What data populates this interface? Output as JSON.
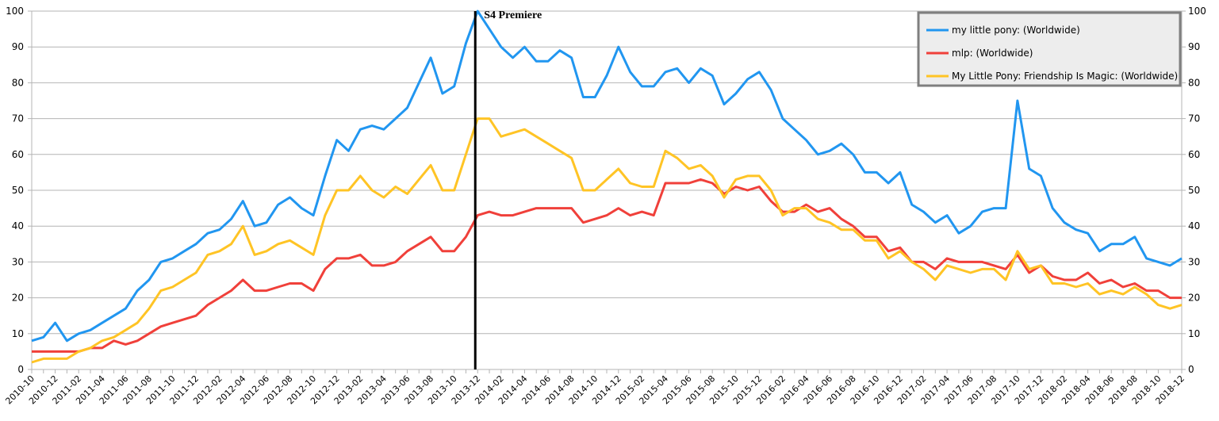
{
  "chart_data": {
    "type": "line",
    "title": "",
    "xlabel": "",
    "ylabel": "",
    "ylim": [
      0,
      100
    ],
    "yticks": [
      0,
      10,
      20,
      30,
      40,
      50,
      60,
      70,
      80,
      90,
      100
    ],
    "grid": true,
    "legend_position": "top-right",
    "x": [
      "2010-10",
      "2010-11",
      "2010-12",
      "2011-01",
      "2011-02",
      "2011-03",
      "2011-04",
      "2011-05",
      "2011-06",
      "2011-07",
      "2011-08",
      "2011-09",
      "2011-10",
      "2011-11",
      "2011-12",
      "2012-01",
      "2012-02",
      "2012-03",
      "2012-04",
      "2012-05",
      "2012-06",
      "2012-07",
      "2012-08",
      "2012-09",
      "2012-10",
      "2012-11",
      "2012-12",
      "2013-01",
      "2013-02",
      "2013-03",
      "2013-04",
      "2013-05",
      "2013-06",
      "2013-07",
      "2013-08",
      "2013-09",
      "2013-10",
      "2013-11",
      "2013-12",
      "2014-01",
      "2014-02",
      "2014-03",
      "2014-04",
      "2014-05",
      "2014-06",
      "2014-07",
      "2014-08",
      "2014-09",
      "2014-10",
      "2014-11",
      "2014-12",
      "2015-01",
      "2015-02",
      "2015-03",
      "2015-04",
      "2015-05",
      "2015-06",
      "2015-07",
      "2015-08",
      "2015-09",
      "2015-10",
      "2015-11",
      "2015-12",
      "2016-01",
      "2016-02",
      "2016-03",
      "2016-04",
      "2016-05",
      "2016-06",
      "2016-07",
      "2016-08",
      "2016-09",
      "2016-10",
      "2016-11",
      "2016-12",
      "2017-01",
      "2017-02",
      "2017-03",
      "2017-04",
      "2017-05",
      "2017-06",
      "2017-07",
      "2017-08",
      "2017-09",
      "2017-10",
      "2017-11",
      "2017-12",
      "2018-01",
      "2018-02",
      "2018-03",
      "2018-04",
      "2018-05",
      "2018-06",
      "2018-07",
      "2018-08",
      "2018-09",
      "2018-10",
      "2018-11",
      "2018-12"
    ],
    "series": [
      {
        "name": "my little pony: (Worldwide)",
        "color": "#2196f0",
        "values": [
          8,
          9,
          13,
          8,
          10,
          11,
          13,
          15,
          17,
          22,
          25,
          30,
          31,
          33,
          35,
          38,
          39,
          42,
          47,
          40,
          41,
          46,
          48,
          45,
          43,
          54,
          64,
          61,
          67,
          68,
          67,
          70,
          73,
          80,
          87,
          77,
          79,
          91,
          100,
          95,
          90,
          87,
          90,
          86,
          86,
          89,
          87,
          76,
          76,
          82,
          90,
          83,
          79,
          79,
          83,
          84,
          80,
          84,
          82,
          74,
          77,
          81,
          83,
          78,
          70,
          67,
          64,
          60,
          61,
          63,
          60,
          55,
          55,
          52,
          55,
          46,
          44,
          41,
          43,
          38,
          40,
          44,
          45,
          45,
          75,
          56,
          54,
          45,
          41,
          39,
          38,
          33,
          35,
          35,
          37,
          31,
          30,
          29,
          31
        ]
      },
      {
        "name": "mlp: (Worldwide)",
        "color": "#f0403a",
        "values": [
          5,
          5,
          5,
          5,
          5,
          6,
          6,
          8,
          7,
          8,
          10,
          12,
          13,
          14,
          15,
          18,
          20,
          22,
          25,
          22,
          22,
          23,
          24,
          24,
          22,
          28,
          31,
          31,
          32,
          29,
          29,
          30,
          33,
          35,
          37,
          33,
          33,
          37,
          43,
          44,
          43,
          43,
          44,
          45,
          45,
          45,
          45,
          41,
          42,
          43,
          45,
          43,
          44,
          43,
          52,
          52,
          52,
          53,
          52,
          49,
          51,
          50,
          51,
          47,
          44,
          44,
          46,
          44,
          45,
          42,
          40,
          37,
          37,
          33,
          34,
          30,
          30,
          28,
          31,
          30,
          30,
          30,
          29,
          28,
          32,
          27,
          29,
          26,
          25,
          25,
          27,
          24,
          25,
          23,
          24,
          22,
          22,
          20,
          20
        ]
      },
      {
        "name": "My Little Pony: Friendship Is Magic: (Worldwide)",
        "color": "#ffc425",
        "values": [
          2,
          3,
          3,
          3,
          5,
          6,
          8,
          9,
          11,
          13,
          17,
          22,
          23,
          25,
          27,
          32,
          33,
          35,
          40,
          32,
          33,
          35,
          36,
          34,
          32,
          43,
          50,
          50,
          54,
          50,
          48,
          51,
          49,
          53,
          57,
          50,
          50,
          60,
          70,
          70,
          65,
          66,
          67,
          65,
          63,
          61,
          59,
          50,
          50,
          53,
          56,
          52,
          51,
          51,
          61,
          59,
          56,
          57,
          54,
          48,
          53,
          54,
          54,
          50,
          43,
          45,
          45,
          42,
          41,
          39,
          39,
          36,
          36,
          31,
          33,
          30,
          28,
          25,
          29,
          28,
          27,
          28,
          28,
          25,
          33,
          28,
          29,
          24,
          24,
          23,
          24,
          21,
          22,
          21,
          23,
          21,
          18,
          17,
          18
        ]
      }
    ],
    "annotations": [
      {
        "text": "S4 Premiere",
        "x": "2013-12",
        "type": "vertical-line"
      }
    ]
  }
}
